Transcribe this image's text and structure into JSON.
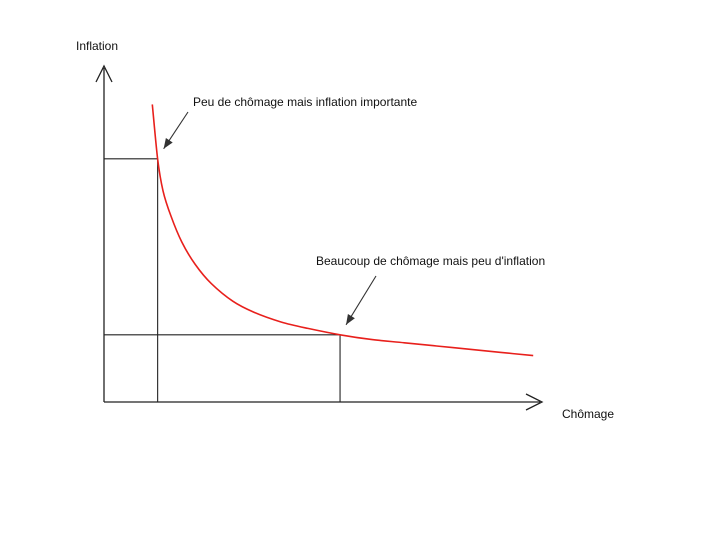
{
  "chart_data": {
    "type": "line",
    "title": "",
    "xlabel": "Chômage",
    "ylabel": "Inflation",
    "grid": false,
    "legend": "none",
    "axes_numeric_ticks": false,
    "series": [
      {
        "color": "#e8201c",
        "points": [
          [
            0.9,
            9.3
          ],
          [
            1.0,
            7.6
          ],
          [
            1.1,
            6.6
          ],
          [
            1.25,
            5.8
          ],
          [
            1.45,
            5.0
          ],
          [
            1.7,
            4.3
          ],
          [
            2.0,
            3.7
          ],
          [
            2.4,
            3.15
          ],
          [
            2.8,
            2.8
          ],
          [
            3.3,
            2.5
          ],
          [
            3.8,
            2.3
          ],
          [
            4.4,
            2.1
          ],
          [
            5.0,
            1.95
          ],
          [
            5.6,
            1.85
          ],
          [
            6.2,
            1.75
          ],
          [
            6.8,
            1.65
          ],
          [
            7.4,
            1.55
          ],
          [
            8.0,
            1.45
          ]
        ]
      }
    ],
    "reference_points": [
      {
        "x": 1.0,
        "y": 7.6
      },
      {
        "x": 4.4,
        "y": 2.1
      }
    ],
    "annotations": [
      {
        "text": "Peu de chômage mais inflation importante",
        "points_to": {
          "x": 1.0,
          "y": 7.6
        }
      },
      {
        "text": "Beaucoup de chômage mais peu d'inflation",
        "points_to": {
          "x": 4.4,
          "y": 2.1
        }
      }
    ],
    "xlim": [
      0,
      8.5
    ],
    "ylim": [
      0,
      11
    ]
  }
}
